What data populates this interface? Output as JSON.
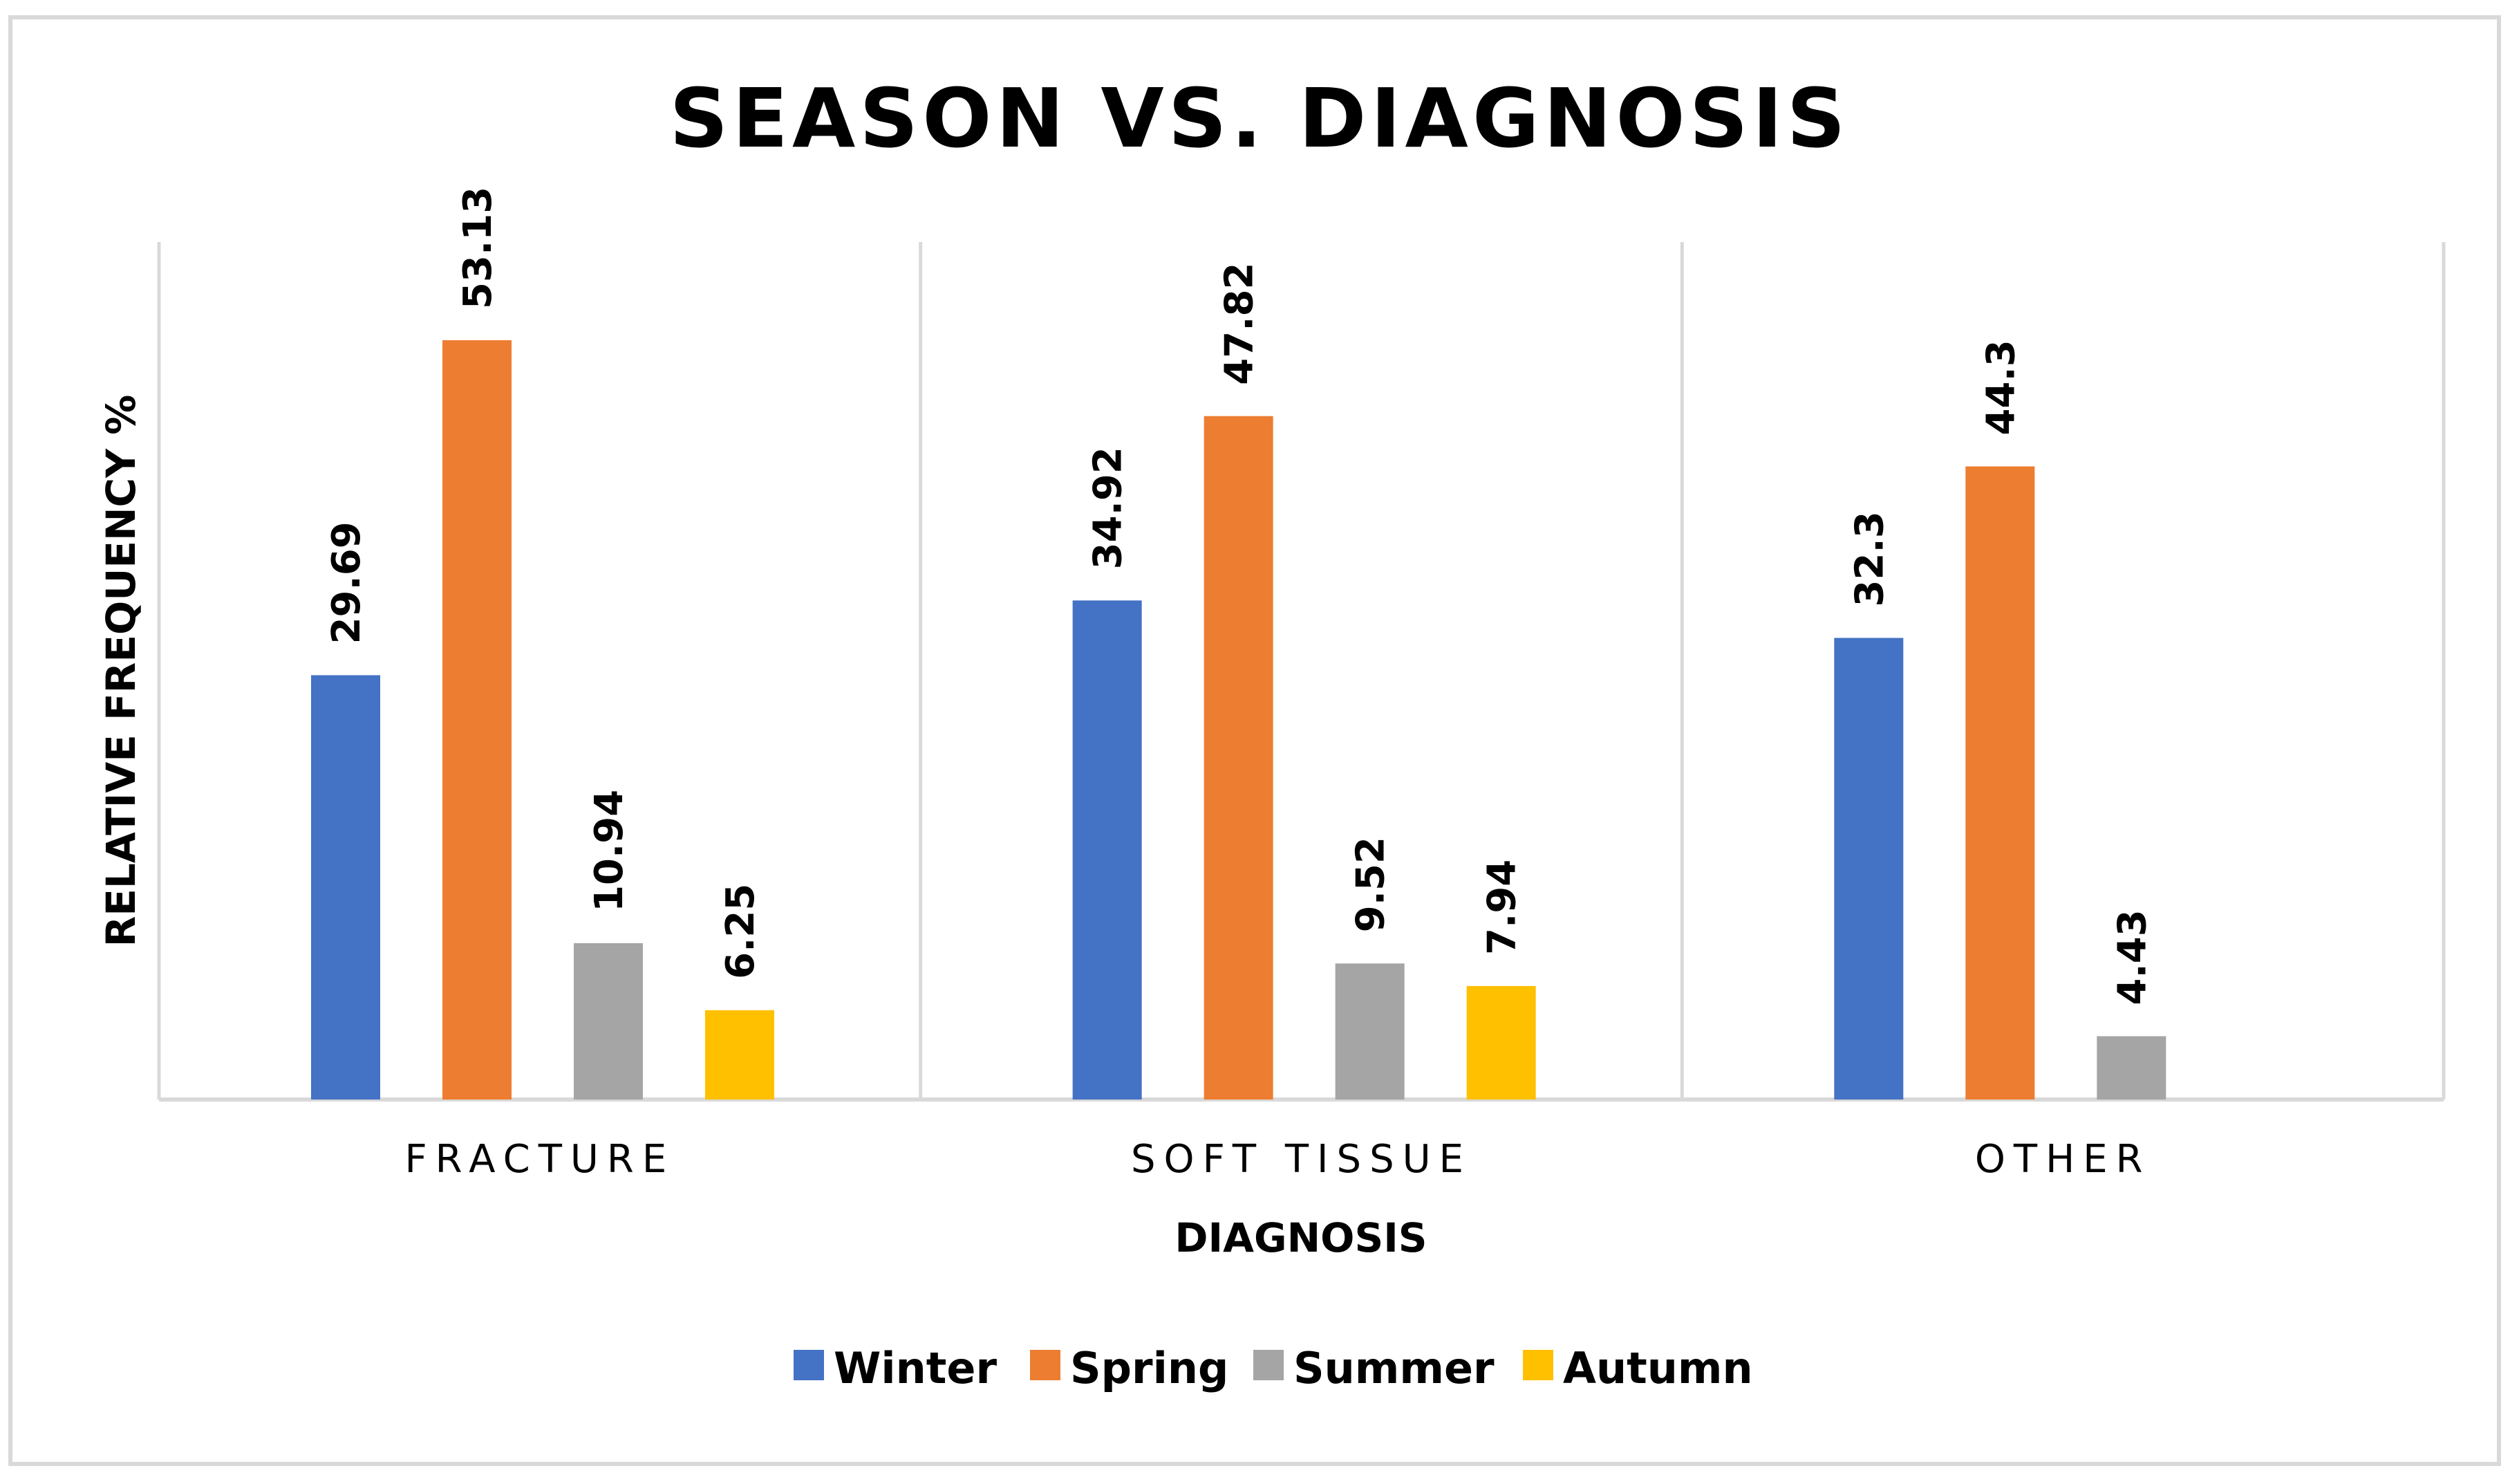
{
  "chart_data": {
    "type": "bar",
    "title": "SEASON VS. DIAGNOSIS",
    "xlabel": "DIAGNOSIS",
    "ylabel": "RELATIVE  FREQUENCY %",
    "categories": [
      "FRACTURE",
      "SOFT TISSUE",
      "OTHER"
    ],
    "series": [
      {
        "name": "Winter",
        "color": "#4472C4",
        "values": [
          29.69,
          34.92,
          32.3
        ]
      },
      {
        "name": "Spring",
        "color": "#ED7D31",
        "values": [
          53.13,
          47.82,
          44.3
        ]
      },
      {
        "name": "Summer",
        "color": "#A5A5A5",
        "values": [
          10.94,
          9.52,
          4.43
        ]
      },
      {
        "name": "Autumn",
        "color": "#FFC000",
        "values": [
          6.25,
          7.94,
          null
        ]
      }
    ],
    "ylim": [
      0,
      60
    ],
    "grid": false,
    "legend": "bottom"
  }
}
